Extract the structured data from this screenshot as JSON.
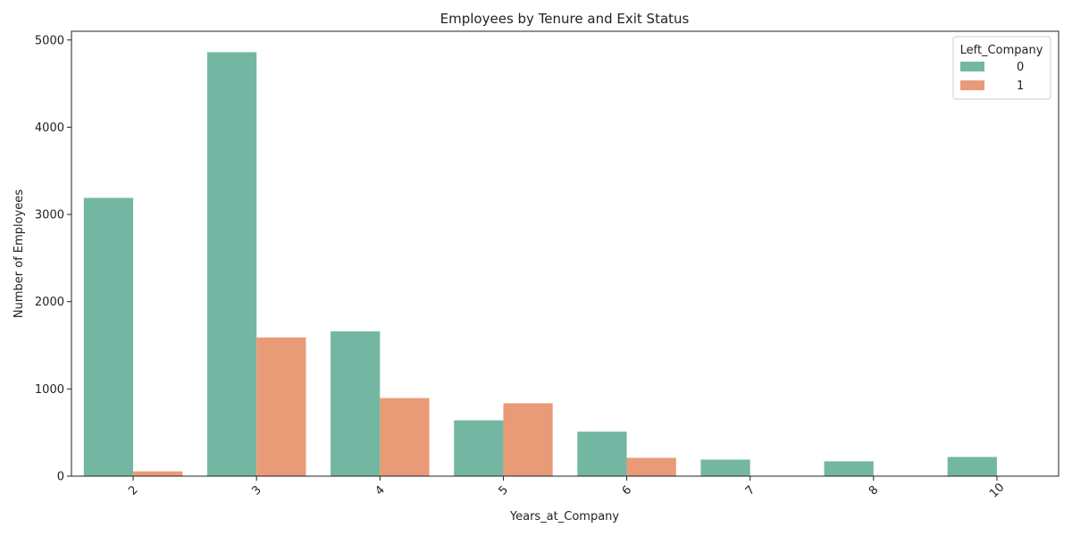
{
  "chart_data": {
    "type": "bar",
    "title": "Employees by Tenure and Exit Status",
    "xlabel": "Years_at_Company",
    "ylabel": "Number of Employees",
    "categories": [
      "2",
      "3",
      "4",
      "5",
      "6",
      "7",
      "8",
      "10"
    ],
    "series": [
      {
        "name": "0",
        "color": "#73b7a2",
        "values": [
          3190,
          4860,
          1660,
          640,
          510,
          190,
          170,
          220
        ]
      },
      {
        "name": "1",
        "color": "#e99a77",
        "values": [
          55,
          1590,
          895,
          835,
          210,
          0,
          0,
          0
        ]
      }
    ],
    "ylim": [
      0,
      5100
    ],
    "yticks": [
      0,
      1000,
      2000,
      3000,
      4000,
      5000
    ],
    "legend": {
      "title": "Left_Company",
      "placement": "top-right"
    },
    "grid": false,
    "xtick_rotation": 45
  }
}
